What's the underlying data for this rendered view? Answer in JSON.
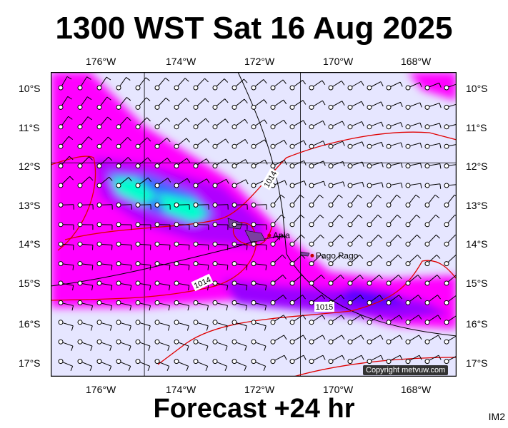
{
  "title": "1300 WST Sat 16 Aug 2025",
  "footer": "Forecast +24 hr",
  "corner_label": "IM2",
  "copyright": "Copyright metvuw.com",
  "longitude_labels": [
    "176°W",
    "174°W",
    "172°W",
    "170°W",
    "168°W"
  ],
  "latitude_labels": [
    "10°S",
    "11°S",
    "12°S",
    "13°S",
    "14°S",
    "15°S",
    "16°S",
    "17°S"
  ],
  "places": [
    {
      "name": "Apia",
      "lon": -171.8,
      "lat": -13.8
    },
    {
      "name": "Pago Pago",
      "lon": -170.7,
      "lat": -14.3
    }
  ],
  "isobar_labels": [
    "1014",
    "1014",
    "1015"
  ],
  "colors": {
    "land": "#7b3fa0",
    "isobar": "#000000",
    "front": "#e00000",
    "background": "#e6e6ff",
    "rain_light": "#ff00ff",
    "rain_mid": "#9a00ff",
    "rain_heavy": "#00ffcc"
  },
  "map_extent": {
    "lon_min": -177.4,
    "lon_max": -167.0,
    "lat_max": -9.75,
    "lat_min": -17.3
  }
}
